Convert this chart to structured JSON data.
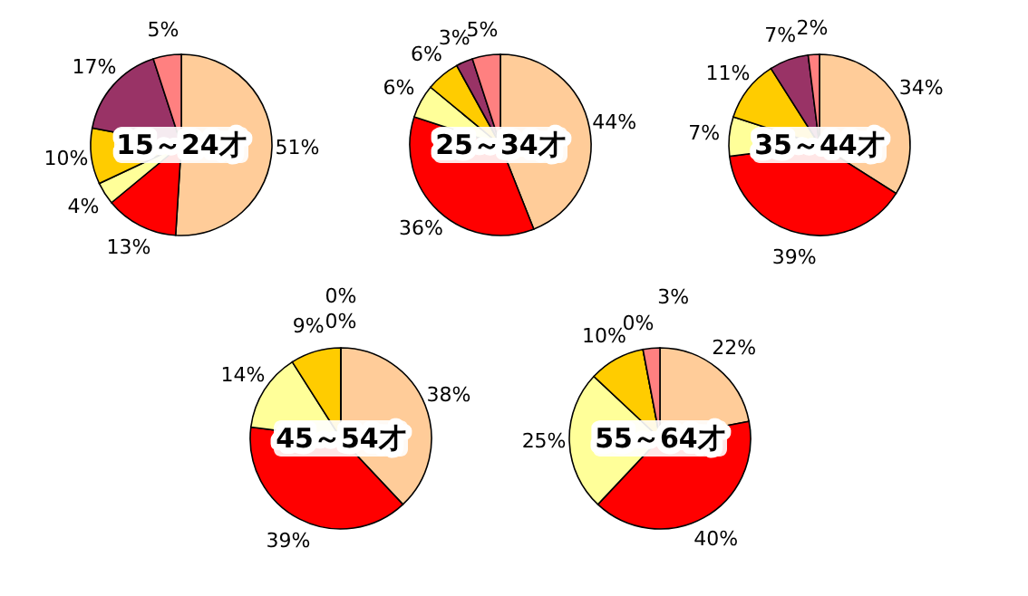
{
  "chart_data": [
    {
      "type": "pie",
      "title": "15～24才",
      "categories": [
        null,
        null,
        null,
        null,
        null,
        null
      ],
      "values": [
        51,
        13,
        4,
        10,
        17,
        5
      ],
      "value_labels": [
        "51%",
        "13%",
        "4%",
        "10%",
        "17%",
        "5%"
      ],
      "colors": [
        "#ffcc99",
        "#ff0000",
        "#ffff99",
        "#ffcc00",
        "#993366",
        "#ff8080"
      ]
    },
    {
      "type": "pie",
      "title": "25～34才",
      "categories": [
        null,
        null,
        null,
        null,
        null,
        null
      ],
      "values": [
        44,
        36,
        6,
        6,
        3,
        5
      ],
      "value_labels": [
        "44%",
        "36%",
        "6%",
        "6%",
        "3%",
        "5%"
      ],
      "colors": [
        "#ffcc99",
        "#ff0000",
        "#ffff99",
        "#ffcc00",
        "#993366",
        "#ff8080"
      ]
    },
    {
      "type": "pie",
      "title": "35～44才",
      "categories": [
        null,
        null,
        null,
        null,
        null,
        null
      ],
      "values": [
        34,
        39,
        7,
        11,
        7,
        2
      ],
      "value_labels": [
        "34%",
        "39%",
        "7%",
        "11%",
        "7%",
        "2%"
      ],
      "colors": [
        "#ffcc99",
        "#ff0000",
        "#ffff99",
        "#ffcc00",
        "#993366",
        "#ff8080"
      ]
    },
    {
      "type": "pie",
      "title": "45～54才",
      "categories": [
        null,
        null,
        null,
        null,
        null,
        null
      ],
      "values": [
        38,
        39,
        14,
        9,
        0,
        0
      ],
      "value_labels": [
        "38%",
        "39%",
        "14%",
        "9%",
        "0%",
        "0%"
      ],
      "colors": [
        "#ffcc99",
        "#ff0000",
        "#ffff99",
        "#ffcc00",
        "#993366",
        "#ff8080"
      ]
    },
    {
      "type": "pie",
      "title": "55～64才",
      "categories": [
        null,
        null,
        null,
        null,
        null,
        null
      ],
      "values": [
        22,
        40,
        25,
        10,
        0,
        3
      ],
      "value_labels": [
        "22%",
        "40%",
        "25%",
        "10%",
        "0%",
        "3%"
      ],
      "colors": [
        "#ffcc99",
        "#ff0000",
        "#ffff99",
        "#ffcc00",
        "#993366",
        "#ff8080"
      ]
    }
  ]
}
